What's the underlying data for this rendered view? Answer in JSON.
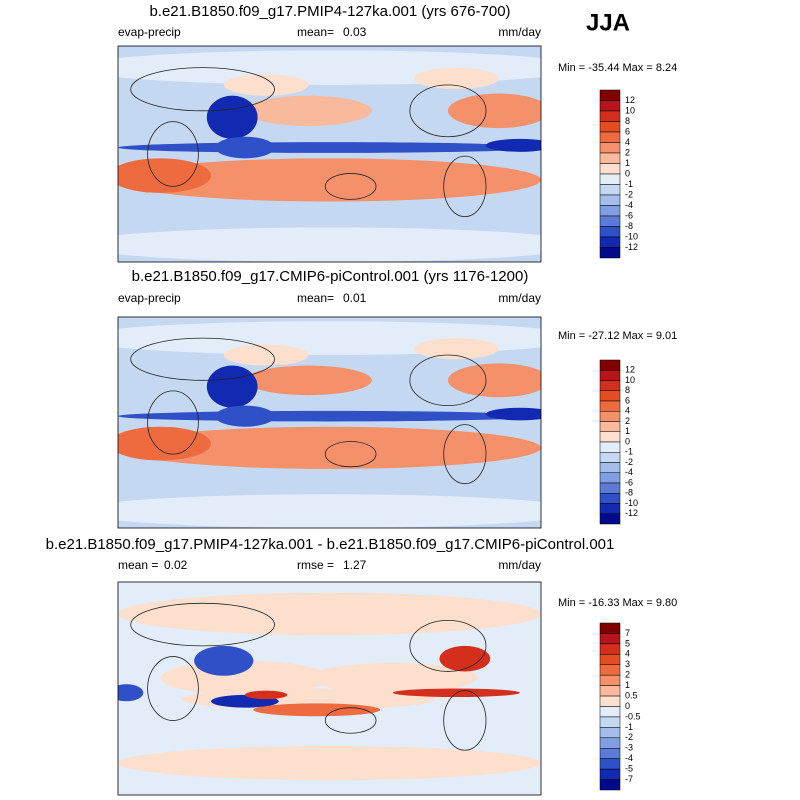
{
  "season": "JJA",
  "panels": [
    {
      "title": "b.e21.B1850.f09_g17.PMIP4-127ka.001 (yrs 676-700)",
      "variable": "evap-precip",
      "stats": [
        {
          "label": "mean=",
          "value": "0.03"
        }
      ],
      "units": "mm/day",
      "min_max": "Min = -35.44 Max =   8.24",
      "colorbar": [
        "12",
        "10",
        "8",
        "6",
        "4",
        "2",
        "1",
        "0",
        "-1",
        "-2",
        "-4",
        "-6",
        "-8",
        "-10",
        "-12"
      ]
    },
    {
      "title": "b.e21.B1850.f09_g17.CMIP6-piControl.001 (yrs 1176-1200)",
      "variable": "evap-precip",
      "stats": [
        {
          "label": "mean=",
          "value": "0.01"
        }
      ],
      "units": "mm/day",
      "min_max": "Min = -27.12 Max =   9.01",
      "colorbar": [
        "12",
        "10",
        "8",
        "6",
        "4",
        "2",
        "1",
        "0",
        "-1",
        "-2",
        "-4",
        "-6",
        "-8",
        "-10",
        "-12"
      ]
    },
    {
      "title": "b.e21.B1850.f09_g17.PMIP4-127ka.001 - b.e21.B1850.f09_g17.CMIP6-piControl.001",
      "stats": [
        {
          "label": "mean =",
          "value": "0.02"
        },
        {
          "label": "rmse =",
          "value": "1.27"
        }
      ],
      "units": "mm/day",
      "min_max": "Min = -16.33 Max =   9.80",
      "colorbar": [
        "7",
        "5",
        "4",
        "3",
        "2",
        "1",
        "0.5",
        "0",
        "-0.5",
        "-1",
        "-2",
        "-3",
        "-4",
        "-5",
        "-7"
      ]
    }
  ]
}
